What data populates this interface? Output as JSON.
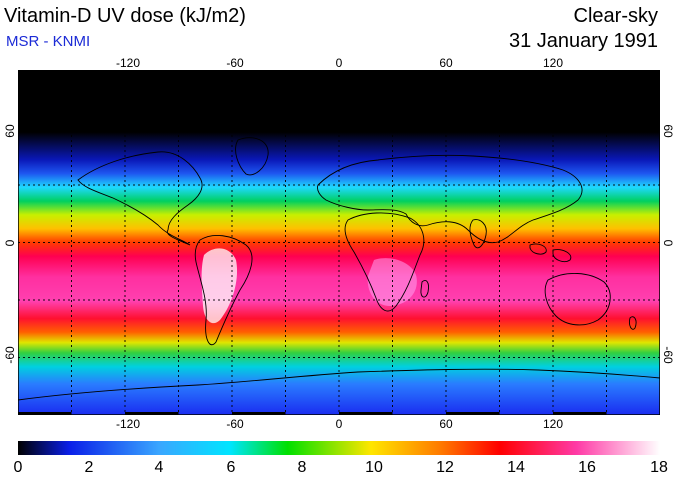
{
  "header": {
    "title": "Vitamin-D UV dose (kJ/m2)",
    "subtitle": "MSR - KNMI",
    "condition": "Clear-sky",
    "date": "31 January 1991"
  },
  "map": {
    "lon_ticks": [
      "-120",
      "-60",
      "0",
      "60",
      "120"
    ],
    "lat_ticks": [
      "60",
      "0",
      "-60"
    ],
    "lon_range": [
      -180,
      180
    ],
    "lat_range": [
      -90,
      90
    ],
    "grid": true
  },
  "colorbar": {
    "ticks": [
      "0",
      "2",
      "4",
      "6",
      "8",
      "10",
      "12",
      "14",
      "16",
      "18"
    ],
    "range": [
      0,
      18
    ],
    "colors": [
      "#000000",
      "#0a1fe8",
      "#3aa6ff",
      "#00e5ff",
      "#00e000",
      "#ffe600",
      "#ff7800",
      "#ff0000",
      "#ff3aa6",
      "#ffffff"
    ]
  }
}
